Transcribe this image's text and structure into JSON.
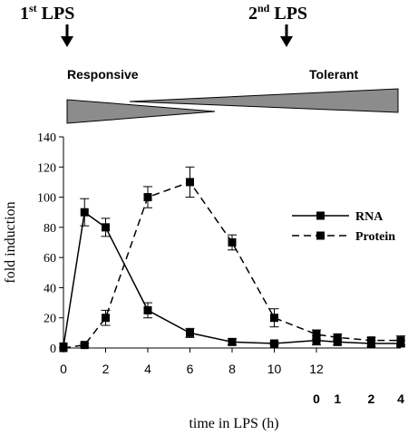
{
  "figure": {
    "lps1": {
      "main": "1",
      "sup": "st",
      "rest": " LPS"
    },
    "lps2": {
      "main": "2",
      "sup": "nd",
      "rest": " LPS"
    },
    "responsive_label": "Responsive",
    "tolerant_label": "Tolerant",
    "wedge_color": "#8c8c8c"
  },
  "chart_data": {
    "type": "line",
    "ylabel": "fold induction",
    "xlabel": "time in LPS (h)",
    "ylim": [
      0,
      140
    ],
    "xlim": [
      0,
      16
    ],
    "yticks": [
      0,
      20,
      40,
      60,
      80,
      100,
      120,
      140
    ],
    "x_ticks_primary": [
      0,
      2,
      4,
      6,
      8,
      10,
      12
    ],
    "x_ticks_secondary": [
      {
        "label": "0",
        "at": 12
      },
      {
        "label": "1",
        "at": 13
      },
      {
        "label": "2",
        "at": 14.6
      },
      {
        "label": "4",
        "at": 16
      }
    ],
    "grid": false,
    "legend_position": "right",
    "series": [
      {
        "name": "RNA",
        "line": "solid",
        "points": [
          {
            "x": 0,
            "y": 1,
            "err": 0
          },
          {
            "x": 1,
            "y": 90,
            "err": 9
          },
          {
            "x": 2,
            "y": 80,
            "err": 6
          },
          {
            "x": 4,
            "y": 25,
            "err": 5
          },
          {
            "x": 6,
            "y": 10,
            "err": 3
          },
          {
            "x": 8,
            "y": 4,
            "err": 2
          },
          {
            "x": 10,
            "y": 3,
            "err": 1
          },
          {
            "x": 12,
            "y": 5,
            "err": 3
          },
          {
            "x": 13,
            "y": 4,
            "err": 2
          },
          {
            "x": 14.6,
            "y": 3,
            "err": 2
          },
          {
            "x": 16,
            "y": 3,
            "err": 2
          }
        ]
      },
      {
        "name": "Protein",
        "line": "dashed",
        "points": [
          {
            "x": 0,
            "y": 0,
            "err": 0
          },
          {
            "x": 1,
            "y": 2,
            "err": 1
          },
          {
            "x": 2,
            "y": 20,
            "err": 5
          },
          {
            "x": 4,
            "y": 100,
            "err": 7
          },
          {
            "x": 6,
            "y": 110,
            "err": 10
          },
          {
            "x": 8,
            "y": 70,
            "err": 5
          },
          {
            "x": 10,
            "y": 20,
            "err": 6
          },
          {
            "x": 12,
            "y": 9,
            "err": 3
          },
          {
            "x": 13,
            "y": 7,
            "err": 2
          },
          {
            "x": 14.6,
            "y": 5,
            "err": 2
          },
          {
            "x": 16,
            "y": 5,
            "err": 3
          }
        ]
      }
    ]
  }
}
